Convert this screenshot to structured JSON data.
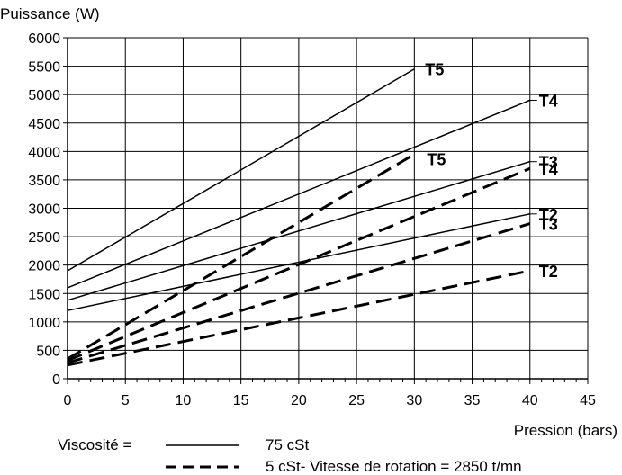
{
  "chart_data": {
    "type": "line",
    "title": "",
    "ylabel": "Puissance (W)",
    "xlabel": "Pression  (bars)",
    "xlim": [
      0,
      45
    ],
    "ylim": [
      0,
      6000
    ],
    "x_ticks": [
      0,
      5,
      10,
      15,
      20,
      25,
      30,
      35,
      40,
      45
    ],
    "y_ticks": [
      0,
      500,
      1000,
      1500,
      2000,
      2500,
      3000,
      3500,
      4000,
      4500,
      5000,
      5500,
      6000
    ],
    "grid": true,
    "legend": {
      "prefix": "Viscosité  =",
      "solid_label": "75 cSt",
      "dashed_label": "5 cSt- Vitesse de rotation = 2850 t/mn"
    },
    "series": [
      {
        "name": "T5",
        "style": "solid",
        "x": [
          0,
          30
        ],
        "y": [
          1900,
          5450
        ]
      },
      {
        "name": "T4",
        "style": "solid",
        "x": [
          0,
          40
        ],
        "y": [
          1600,
          4900
        ]
      },
      {
        "name": "T3",
        "style": "solid",
        "x": [
          0,
          40
        ],
        "y": [
          1380,
          3820
        ]
      },
      {
        "name": "T2",
        "style": "solid",
        "x": [
          0,
          40
        ],
        "y": [
          1200,
          2900
        ]
      },
      {
        "name": "T5",
        "style": "dashed",
        "x": [
          0,
          30
        ],
        "y": [
          350,
          3950
        ]
      },
      {
        "name": "T4",
        "style": "dashed",
        "x": [
          0,
          40
        ],
        "y": [
          320,
          3700
        ]
      },
      {
        "name": "T3",
        "style": "dashed",
        "x": [
          0,
          40
        ],
        "y": [
          280,
          2730
        ]
      },
      {
        "name": "T2",
        "style": "dashed",
        "x": [
          0,
          40
        ],
        "y": [
          240,
          1900
        ]
      }
    ]
  }
}
